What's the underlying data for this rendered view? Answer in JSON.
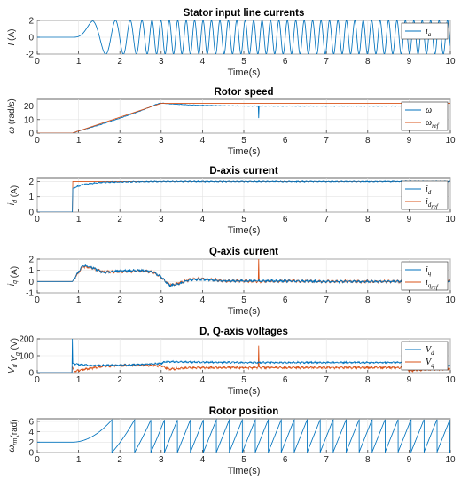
{
  "colors": {
    "blue": "#0072BD",
    "orange": "#D95319"
  },
  "chart_data": [
    {
      "type": "line",
      "title": "Stator input line currents",
      "xlabel": "Time(s)",
      "ylabel": {
        "sym": "I",
        "rest": " (A)"
      },
      "xlim": [
        0,
        10
      ],
      "ylim": [
        -2,
        2
      ],
      "xticks": [
        "0",
        "1",
        "2",
        "3",
        "4",
        "5",
        "6",
        "7",
        "8",
        "9",
        "10"
      ],
      "yticks": [
        "-2",
        "0",
        "2"
      ],
      "legend": {
        "position": "top-right",
        "entries": [
          {
            "sym": "i",
            "sub": "a"
          }
        ]
      },
      "series": [
        {
          "name": "i_a",
          "color": "blue",
          "kind": "sine",
          "t0": 0.85,
          "amp_steps": [
            [
              0.85,
              0.0
            ],
            [
              1.1,
              1.0
            ],
            [
              1.35,
              2.0
            ],
            [
              10,
              2.0
            ]
          ],
          "freq_steps": [
            [
              0.85,
              0.0
            ],
            [
              3.0,
              4.9
            ],
            [
              10,
              4.9
            ]
          ],
          "pre_value": 0.1
        }
      ]
    },
    {
      "type": "line",
      "title": "Rotor speed",
      "xlabel": "Time(s)",
      "ylabel": {
        "sym": "ω",
        "rest": " (rad/s)"
      },
      "xlim": [
        0,
        10
      ],
      "ylim": [
        0,
        25
      ],
      "xticks": [
        "0",
        "1",
        "2",
        "3",
        "4",
        "5",
        "6",
        "7",
        "8",
        "9",
        "10"
      ],
      "yticks": [
        "0",
        "10",
        "20"
      ],
      "legend": {
        "position": "right",
        "entries": [
          {
            "sym": "ω",
            "sub": ""
          },
          {
            "sym": "ω",
            "sub": "ref"
          }
        ]
      },
      "series": [
        {
          "name": "ω",
          "color": "blue",
          "points": [
            [
              0,
              0
            ],
            [
              0.85,
              0
            ],
            [
              1.0,
              1.5
            ],
            [
              1.5,
              6
            ],
            [
              2.0,
              11
            ],
            [
              2.5,
              16.5
            ],
            [
              2.9,
              21.5
            ],
            [
              3.0,
              22.2
            ],
            [
              3.3,
              21.5
            ],
            [
              3.6,
              21
            ],
            [
              4.0,
              20.5
            ],
            [
              5.0,
              20
            ],
            [
              5.35,
              20
            ],
            [
              5.36,
              11
            ],
            [
              5.37,
              20
            ],
            [
              6,
              20
            ],
            [
              7,
              20
            ],
            [
              8,
              20
            ],
            [
              9,
              20
            ],
            [
              10,
              20
            ]
          ],
          "noise": 0.2
        },
        {
          "name": "ω_ref",
          "color": "orange",
          "points": [
            [
              0,
              0
            ],
            [
              0.85,
              0
            ],
            [
              3.0,
              22
            ],
            [
              10,
              22
            ]
          ],
          "noise": 0
        }
      ]
    },
    {
      "type": "line",
      "title": "D-axis current",
      "xlabel": "Time(s)",
      "ylabel": {
        "sym": "i",
        "sub": "d",
        "rest": " (A)"
      },
      "xlim": [
        0,
        10
      ],
      "ylim": [
        0,
        2.2
      ],
      "xticks": [
        "0",
        "1",
        "2",
        "3",
        "4",
        "5",
        "6",
        "7",
        "8",
        "9",
        "10"
      ],
      "yticks": [
        "0",
        "1",
        "2"
      ],
      "legend": {
        "position": "right",
        "entries": [
          {
            "sym": "i",
            "sub": "d"
          },
          {
            "sym": "i",
            "sub": "d",
            "sub2": "ref"
          }
        ]
      },
      "series": [
        {
          "name": "i_d_ref",
          "color": "orange",
          "points": [
            [
              0,
              0
            ],
            [
              0.85,
              0
            ],
            [
              0.86,
              2
            ],
            [
              10,
              2
            ]
          ],
          "noise": 0
        },
        {
          "name": "i_d",
          "color": "blue",
          "points": [
            [
              0,
              0
            ],
            [
              0.85,
              0
            ],
            [
              0.86,
              1.55
            ],
            [
              1.1,
              1.8
            ],
            [
              1.5,
              1.93
            ],
            [
              2.0,
              1.97
            ],
            [
              3.0,
              2.0
            ],
            [
              10,
              2.0
            ]
          ],
          "noise": 0.04
        }
      ]
    },
    {
      "type": "line",
      "title": "Q-axis current",
      "xlabel": "Time(s)",
      "ylabel": {
        "sym": "i",
        "sub": "q",
        "rest": " (A)"
      },
      "xlim": [
        0,
        10
      ],
      "ylim": [
        -1,
        2
      ],
      "xticks": [
        "0",
        "1",
        "2",
        "3",
        "4",
        "5",
        "6",
        "7",
        "8",
        "9",
        "10"
      ],
      "yticks": [
        "-1",
        "0",
        "1",
        "2"
      ],
      "legend": {
        "position": "right",
        "entries": [
          {
            "sym": "i",
            "sub": "q"
          },
          {
            "sym": "i",
            "sub": "q",
            "sub2": "ref"
          }
        ]
      },
      "series": [
        {
          "name": "i_q_ref",
          "color": "orange",
          "points": [
            [
              0,
              0
            ],
            [
              0.85,
              0
            ],
            [
              1.1,
              1.35
            ],
            [
              1.3,
              1.25
            ],
            [
              1.6,
              0.85
            ],
            [
              2.0,
              0.9
            ],
            [
              2.5,
              0.95
            ],
            [
              2.8,
              0.85
            ],
            [
              3.0,
              0.4
            ],
            [
              3.2,
              -0.3
            ],
            [
              3.4,
              -0.2
            ],
            [
              3.7,
              0.2
            ],
            [
              4.0,
              0.25
            ],
            [
              4.5,
              0.05
            ],
            [
              5.0,
              0.05
            ],
            [
              5.35,
              0.0
            ],
            [
              5.36,
              2.0
            ],
            [
              5.37,
              0.0
            ],
            [
              6,
              0.05
            ],
            [
              7,
              0.0
            ],
            [
              8,
              0.0
            ],
            [
              9,
              0.0
            ],
            [
              10,
              0.0
            ]
          ],
          "noise": 0.12
        },
        {
          "name": "i_q",
          "color": "blue",
          "points": [
            [
              0,
              0
            ],
            [
              0.85,
              0
            ],
            [
              1.1,
              1.45
            ],
            [
              1.3,
              1.3
            ],
            [
              1.6,
              0.8
            ],
            [
              2.0,
              0.95
            ],
            [
              2.5,
              1.0
            ],
            [
              2.8,
              0.9
            ],
            [
              3.0,
              0.4
            ],
            [
              3.2,
              -0.35
            ],
            [
              3.4,
              -0.25
            ],
            [
              3.7,
              0.15
            ],
            [
              4.0,
              0.2
            ],
            [
              4.5,
              0.05
            ],
            [
              5.0,
              0.05
            ],
            [
              6,
              0.05
            ],
            [
              7,
              0.0
            ],
            [
              8,
              0.0
            ],
            [
              9,
              0.0
            ],
            [
              10,
              0.0
            ]
          ],
          "noise": 0.1
        }
      ]
    },
    {
      "type": "line",
      "title": "D, Q-axis voltages",
      "xlabel": "Time(s)",
      "ylabel": {
        "sym": "V",
        "sub": "d",
        "sym2": "V",
        "sub2": "q",
        "rest": " (V)"
      },
      "xlim": [
        0,
        10
      ],
      "ylim": [
        0,
        200
      ],
      "xticks": [
        "0",
        "1",
        "2",
        "3",
        "4",
        "5",
        "6",
        "7",
        "8",
        "9",
        "10"
      ],
      "yticks": [
        "0",
        "100",
        "200"
      ],
      "legend": {
        "position": "right",
        "entries": [
          {
            "sym": "V",
            "sub": "d"
          },
          {
            "sym": "V",
            "sub": "q"
          }
        ]
      },
      "series": [
        {
          "name": "V_q",
          "color": "orange",
          "points": [
            [
              0,
              0
            ],
            [
              0.84,
              0
            ],
            [
              0.85,
              35
            ],
            [
              0.9,
              8
            ],
            [
              1.2,
              22
            ],
            [
              1.6,
              38
            ],
            [
              2.0,
              42
            ],
            [
              2.5,
              45
            ],
            [
              3.0,
              40
            ],
            [
              3.2,
              20
            ],
            [
              3.6,
              28
            ],
            [
              4.0,
              30
            ],
            [
              5,
              30
            ],
            [
              5.35,
              30
            ],
            [
              5.36,
              160
            ],
            [
              5.37,
              30
            ],
            [
              6,
              30
            ],
            [
              7,
              30
            ],
            [
              8,
              30
            ],
            [
              8.95,
              30
            ],
            [
              9.0,
              12
            ],
            [
              9.4,
              18
            ],
            [
              10,
              22
            ]
          ],
          "noise": 7
        },
        {
          "name": "V_d",
          "color": "blue",
          "points": [
            [
              0,
              0
            ],
            [
              0.84,
              0
            ],
            [
              0.85,
              200
            ],
            [
              0.86,
              55
            ],
            [
              1.0,
              48
            ],
            [
              1.4,
              42
            ],
            [
              2.0,
              45
            ],
            [
              2.5,
              48
            ],
            [
              3.0,
              55
            ],
            [
              3.1,
              65
            ],
            [
              4,
              62
            ],
            [
              5,
              60
            ],
            [
              6,
              60
            ],
            [
              7,
              60
            ],
            [
              8,
              60
            ],
            [
              8.95,
              60
            ],
            [
              9.0,
              28
            ],
            [
              9.5,
              36
            ],
            [
              10,
              40
            ]
          ],
          "noise": 5
        }
      ]
    },
    {
      "type": "line",
      "title": "Rotor position",
      "xlabel": "Time(s)",
      "ylabel": {
        "sym": "ω",
        "sub": "rm",
        "rest": "(rad)"
      },
      "xlim": [
        0,
        10
      ],
      "ylim": [
        0,
        6.5
      ],
      "xticks": [
        "0",
        "1",
        "2",
        "3",
        "4",
        "5",
        "6",
        "7",
        "8",
        "9",
        "10"
      ],
      "yticks": [
        "0",
        "2",
        "4",
        "6"
      ],
      "legend": null,
      "series": [
        {
          "name": "theta",
          "color": "blue",
          "kind": "integral_wrap",
          "start": 2.0,
          "wrap": 6.28,
          "speed": [
            [
              0,
              0
            ],
            [
              0.85,
              0
            ],
            [
              3.0,
              20
            ],
            [
              10,
              20
            ]
          ]
        }
      ]
    }
  ]
}
